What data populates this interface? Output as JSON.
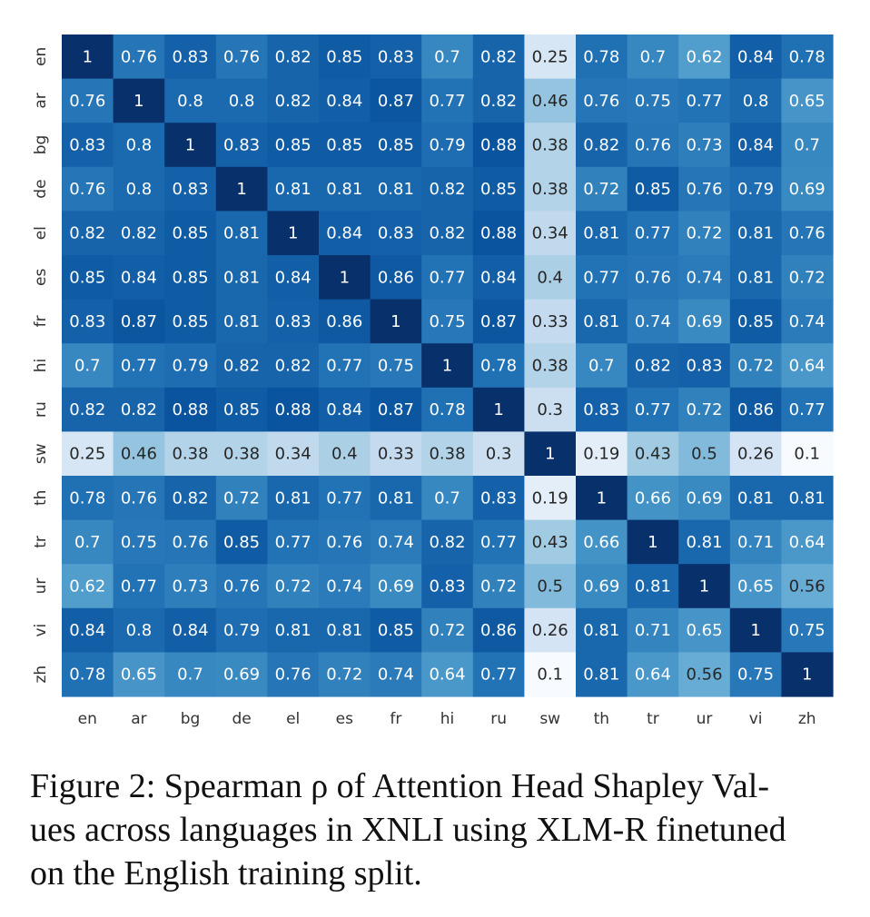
{
  "chart_data": {
    "type": "heatmap",
    "title": "",
    "xlabel": "",
    "ylabel": "",
    "x_categories": [
      "en",
      "ar",
      "bg",
      "de",
      "el",
      "es",
      "fr",
      "hi",
      "ru",
      "sw",
      "th",
      "tr",
      "ur",
      "vi",
      "zh"
    ],
    "y_categories": [
      "en",
      "ar",
      "bg",
      "de",
      "el",
      "es",
      "fr",
      "hi",
      "ru",
      "sw",
      "th",
      "tr",
      "ur",
      "vi",
      "zh"
    ],
    "values": [
      [
        1,
        0.76,
        0.83,
        0.76,
        0.82,
        0.85,
        0.83,
        0.7,
        0.82,
        0.25,
        0.78,
        0.7,
        0.62,
        0.84,
        0.78
      ],
      [
        0.76,
        1,
        0.8,
        0.8,
        0.82,
        0.84,
        0.87,
        0.77,
        0.82,
        0.46,
        0.76,
        0.75,
        0.77,
        0.8,
        0.65
      ],
      [
        0.83,
        0.8,
        1,
        0.83,
        0.85,
        0.85,
        0.85,
        0.79,
        0.88,
        0.38,
        0.82,
        0.76,
        0.73,
        0.84,
        0.7
      ],
      [
        0.76,
        0.8,
        0.83,
        1,
        0.81,
        0.81,
        0.81,
        0.82,
        0.85,
        0.38,
        0.72,
        0.85,
        0.76,
        0.79,
        0.69
      ],
      [
        0.82,
        0.82,
        0.85,
        0.81,
        1,
        0.84,
        0.83,
        0.82,
        0.88,
        0.34,
        0.81,
        0.77,
        0.72,
        0.81,
        0.76
      ],
      [
        0.85,
        0.84,
        0.85,
        0.81,
        0.84,
        1,
        0.86,
        0.77,
        0.84,
        0.4,
        0.77,
        0.76,
        0.74,
        0.81,
        0.72
      ],
      [
        0.83,
        0.87,
        0.85,
        0.81,
        0.83,
        0.86,
        1,
        0.75,
        0.87,
        0.33,
        0.81,
        0.74,
        0.69,
        0.85,
        0.74
      ],
      [
        0.7,
        0.77,
        0.79,
        0.82,
        0.82,
        0.77,
        0.75,
        1,
        0.78,
        0.38,
        0.7,
        0.82,
        0.83,
        0.72,
        0.64
      ],
      [
        0.82,
        0.82,
        0.88,
        0.85,
        0.88,
        0.84,
        0.87,
        0.78,
        1,
        0.3,
        0.83,
        0.77,
        0.72,
        0.86,
        0.77
      ],
      [
        0.25,
        0.46,
        0.38,
        0.38,
        0.34,
        0.4,
        0.33,
        0.38,
        0.3,
        1,
        0.19,
        0.43,
        0.5,
        0.26,
        0.1
      ],
      [
        0.78,
        0.76,
        0.82,
        0.72,
        0.81,
        0.77,
        0.81,
        0.7,
        0.83,
        0.19,
        1,
        0.66,
        0.69,
        0.81,
        0.81
      ],
      [
        0.7,
        0.75,
        0.76,
        0.85,
        0.77,
        0.76,
        0.74,
        0.82,
        0.77,
        0.43,
        0.66,
        1,
        0.81,
        0.71,
        0.64
      ],
      [
        0.62,
        0.77,
        0.73,
        0.76,
        0.72,
        0.74,
        0.69,
        0.83,
        0.72,
        0.5,
        0.69,
        0.81,
        1,
        0.65,
        0.56
      ],
      [
        0.84,
        0.8,
        0.84,
        0.79,
        0.81,
        0.81,
        0.85,
        0.72,
        0.86,
        0.26,
        0.81,
        0.71,
        0.65,
        1,
        0.75
      ],
      [
        0.78,
        0.65,
        0.7,
        0.69,
        0.76,
        0.72,
        0.74,
        0.64,
        0.77,
        0.1,
        0.81,
        0.64,
        0.56,
        0.75,
        1
      ]
    ],
    "value_range": [
      0.1,
      1
    ],
    "colormap": "Blues",
    "annotated": true,
    "colorbar": false
  },
  "caption": {
    "text": "Figure 2: Spearman ρ of Attention Head Shapley Val-\nues across languages in XNLI using XLM-R finetuned\non the English training split."
  }
}
